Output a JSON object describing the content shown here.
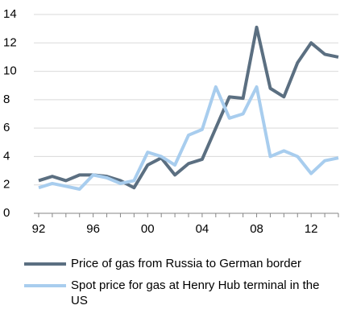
{
  "chart_data": {
    "type": "line",
    "categories": [
      "92",
      null,
      null,
      null,
      "96",
      null,
      null,
      null,
      "00",
      null,
      null,
      null,
      "04",
      null,
      null,
      null,
      "08",
      null,
      null,
      null,
      "12",
      null,
      null
    ],
    "series": [
      {
        "name": "Price of gas from Russia to German border",
        "color": "#5b6f81",
        "values": [
          2.3,
          2.6,
          2.3,
          2.7,
          2.7,
          2.6,
          2.3,
          1.8,
          3.4,
          3.9,
          2.7,
          3.5,
          3.8,
          6.0,
          8.2,
          8.1,
          13.1,
          8.8,
          8.2,
          10.6,
          12.0,
          11.2,
          11.0
        ]
      },
      {
        "name": "Spot price for gas at Henry Hub terminal in the US",
        "color": "#a8cdee",
        "values": [
          1.8,
          2.1,
          1.9,
          1.7,
          2.7,
          2.5,
          2.1,
          2.3,
          4.3,
          4.0,
          3.4,
          5.5,
          5.9,
          8.9,
          6.7,
          7.0,
          8.9,
          4.0,
          4.4,
          4.0,
          2.8,
          3.7,
          3.9
        ]
      }
    ],
    "ylim": [
      0,
      14
    ],
    "yticks": [
      0,
      2,
      4,
      6,
      8,
      10,
      12,
      14
    ],
    "grid": true
  }
}
